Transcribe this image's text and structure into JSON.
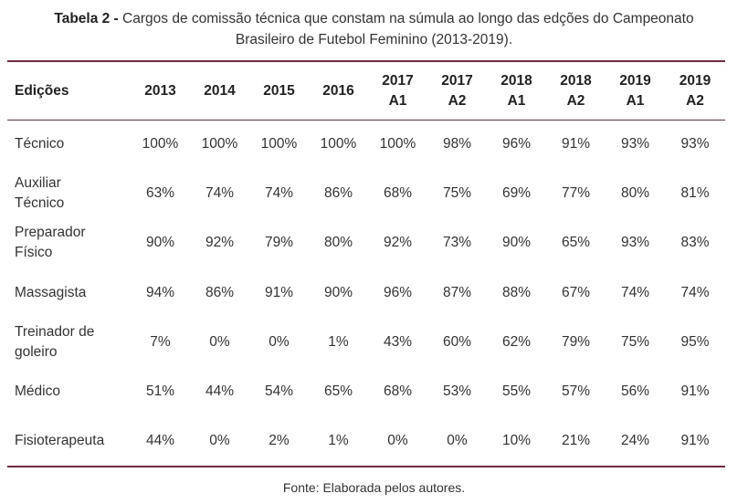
{
  "caption": {
    "label": "Tabela 2 -",
    "line1": "Cargos de comissão técnica que constam na súmula ao longo das edções do Campeonato",
    "line2": "Brasileiro de Futebol Feminino (2013-2019)."
  },
  "table": {
    "headers": [
      [
        "Edições"
      ],
      [
        "2013"
      ],
      [
        "2014"
      ],
      [
        "2015"
      ],
      [
        "2016"
      ],
      [
        "2017",
        "A1"
      ],
      [
        "2017",
        "A2"
      ],
      [
        "2018",
        "A1"
      ],
      [
        "2018",
        "A2"
      ],
      [
        "2019",
        "A1"
      ],
      [
        "2019",
        "A2"
      ]
    ],
    "rows": [
      {
        "label": [
          "Técnico"
        ],
        "values": [
          "100%",
          "100%",
          "100%",
          "100%",
          "100%",
          "98%",
          "96%",
          "91%",
          "93%",
          "93%"
        ]
      },
      {
        "label": [
          "Auxiliar",
          "Técnico"
        ],
        "values": [
          "63%",
          "74%",
          "74%",
          "86%",
          "68%",
          "75%",
          "69%",
          "77%",
          "80%",
          "81%"
        ]
      },
      {
        "label": [
          "Preparador",
          "Físico"
        ],
        "values": [
          "90%",
          "92%",
          "79%",
          "80%",
          "92%",
          "73%",
          "90%",
          "65%",
          "93%",
          "83%"
        ]
      },
      {
        "label": [
          "Massagista"
        ],
        "values": [
          "94%",
          "86%",
          "91%",
          "90%",
          "96%",
          "87%",
          "88%",
          "67%",
          "74%",
          "74%"
        ]
      },
      {
        "label": [
          "Treinador de",
          "goleiro"
        ],
        "values": [
          "7%",
          "0%",
          "0%",
          "1%",
          "43%",
          "60%",
          "62%",
          "79%",
          "75%",
          "95%"
        ]
      },
      {
        "label": [
          "Médico"
        ],
        "values": [
          "51%",
          "44%",
          "54%",
          "65%",
          "68%",
          "53%",
          "55%",
          "57%",
          "56%",
          "91%"
        ]
      },
      {
        "label": [
          "Fisioterapeuta"
        ],
        "values": [
          "44%",
          "0%",
          "2%",
          "1%",
          "0%",
          "0%",
          "10%",
          "21%",
          "24%",
          "91%"
        ]
      }
    ]
  },
  "footer": "Fonte: Elaborada pelos autores.",
  "colors": {
    "rule": "#7a2a3e",
    "text": "#222222"
  }
}
